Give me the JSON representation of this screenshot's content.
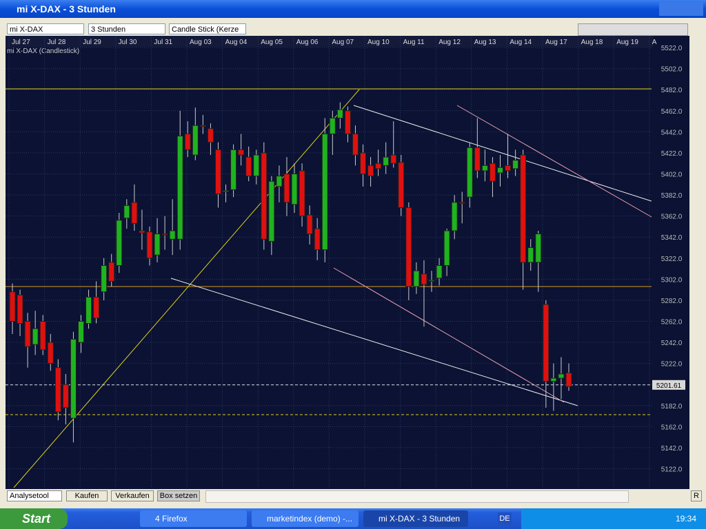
{
  "window": {
    "title": "mi X-DAX - 3 Stunden"
  },
  "toolbar": {
    "instrument": "mi X-DAX",
    "period": "3 Stunden",
    "chart_style": "Candle Stick (Kerze"
  },
  "chart_data": {
    "type": "candlestick",
    "title": "mi X-DAX (Candlestick)",
    "categories": [
      "Jul 27",
      "Jul 28",
      "Jul 29",
      "Jul 30",
      "Jul 31",
      "Aug 03",
      "Aug 04",
      "Aug 05",
      "Aug 06",
      "Aug 07",
      "Aug 10",
      "Aug 11",
      "Aug 12",
      "Aug 13",
      "Aug 14",
      "Aug 17",
      "Aug 18",
      "Aug 19",
      "A"
    ],
    "ylim": [
      5104,
      5524
    ],
    "yticks": [
      {
        "value": 5122,
        "label": "5122.0"
      },
      {
        "value": 5142,
        "label": "5142.0"
      },
      {
        "value": 5162,
        "label": "5162.0"
      },
      {
        "value": 5182,
        "label": "5182.0"
      },
      {
        "value": 5202,
        "label": "5202.0"
      },
      {
        "value": 5222,
        "label": "5222.0"
      },
      {
        "value": 5242,
        "label": "5242.0"
      },
      {
        "value": 5262,
        "label": "5262.0"
      },
      {
        "value": 5282,
        "label": "5282.0"
      },
      {
        "value": 5302,
        "label": "5302.0"
      },
      {
        "value": 5322,
        "label": "5322.0"
      },
      {
        "value": 5342,
        "label": "5342.0"
      },
      {
        "value": 5362,
        "label": "5362.0"
      },
      {
        "value": 5382,
        "label": "5382.0"
      },
      {
        "value": 5402,
        "label": "5402.0"
      },
      {
        "value": 5422,
        "label": "5422.0"
      },
      {
        "value": 5442,
        "label": "5442.0"
      },
      {
        "value": 5462,
        "label": "5462.0"
      },
      {
        "value": 5482,
        "label": "5482.0"
      },
      {
        "value": 5502,
        "label": "5502.0"
      },
      {
        "value": 5522,
        "label": "5522.0"
      }
    ],
    "last_price": {
      "value": 5201.61,
      "label": "5201.61"
    },
    "up_color": "#1fb31f",
    "down_color": "#e01010",
    "grid": true,
    "candles": [
      {
        "o": 5290,
        "h": 5298,
        "l": 5250,
        "c": 5262
      },
      {
        "o": 5287,
        "h": 5292,
        "l": 5248,
        "c": 5260
      },
      {
        "o": 5262,
        "h": 5270,
        "l": 5218,
        "c": 5238
      },
      {
        "o": 5240,
        "h": 5272,
        "l": 5230,
        "c": 5255
      },
      {
        "o": 5262,
        "h": 5268,
        "l": 5230,
        "c": 5235
      },
      {
        "o": 5242,
        "h": 5250,
        "l": 5215,
        "c": 5222
      },
      {
        "o": 5218,
        "h": 5226,
        "l": 5168,
        "c": 5176
      },
      {
        "o": 5202,
        "h": 5212,
        "l": 5164,
        "c": 5180
      },
      {
        "o": 5170,
        "h": 5252,
        "l": 5147,
        "c": 5245
      },
      {
        "o": 5242,
        "h": 5268,
        "l": 5232,
        "c": 5262
      },
      {
        "o": 5260,
        "h": 5292,
        "l": 5255,
        "c": 5285
      },
      {
        "o": 5285,
        "h": 5300,
        "l": 5260,
        "c": 5265
      },
      {
        "o": 5290,
        "h": 5322,
        "l": 5282,
        "c": 5315
      },
      {
        "o": 5318,
        "h": 5326,
        "l": 5295,
        "c": 5300
      },
      {
        "o": 5315,
        "h": 5365,
        "l": 5308,
        "c": 5358
      },
      {
        "o": 5360,
        "h": 5378,
        "l": 5350,
        "c": 5372
      },
      {
        "o": 5375,
        "h": 5392,
        "l": 5348,
        "c": 5355
      },
      {
        "o": 5348,
        "h": 5368,
        "l": 5330,
        "c": 5346
      },
      {
        "o": 5347,
        "h": 5352,
        "l": 5315,
        "c": 5322
      },
      {
        "o": 5325,
        "h": 5360,
        "l": 5318,
        "c": 5345
      },
      {
        "o": 5345,
        "h": 5362,
        "l": 5330,
        "c": 5344
      },
      {
        "o": 5340,
        "h": 5378,
        "l": 5325,
        "c": 5348
      },
      {
        "o": 5340,
        "h": 5462,
        "l": 5330,
        "c": 5438
      },
      {
        "o": 5440,
        "h": 5452,
        "l": 5418,
        "c": 5425
      },
      {
        "o": 5420,
        "h": 5465,
        "l": 5415,
        "c": 5448
      },
      {
        "o": 5448,
        "h": 5458,
        "l": 5440,
        "c": 5447
      },
      {
        "o": 5445,
        "h": 5450,
        "l": 5420,
        "c": 5432
      },
      {
        "o": 5425,
        "h": 5432,
        "l": 5370,
        "c": 5383
      },
      {
        "o": 5385,
        "h": 5392,
        "l": 5375,
        "c": 5386
      },
      {
        "o": 5387,
        "h": 5430,
        "l": 5380,
        "c": 5425
      },
      {
        "o": 5425,
        "h": 5440,
        "l": 5410,
        "c": 5420
      },
      {
        "o": 5418,
        "h": 5428,
        "l": 5395,
        "c": 5400
      },
      {
        "o": 5400,
        "h": 5425,
        "l": 5392,
        "c": 5420
      },
      {
        "o": 5422,
        "h": 5432,
        "l": 5330,
        "c": 5340
      },
      {
        "o": 5338,
        "h": 5400,
        "l": 5325,
        "c": 5395
      },
      {
        "o": 5390,
        "h": 5410,
        "l": 5375,
        "c": 5400
      },
      {
        "o": 5402,
        "h": 5418,
        "l": 5362,
        "c": 5375
      },
      {
        "o": 5373,
        "h": 5412,
        "l": 5365,
        "c": 5402
      },
      {
        "o": 5405,
        "h": 5412,
        "l": 5352,
        "c": 5362
      },
      {
        "o": 5363,
        "h": 5372,
        "l": 5335,
        "c": 5345
      },
      {
        "o": 5350,
        "h": 5360,
        "l": 5320,
        "c": 5330
      },
      {
        "o": 5330,
        "h": 5455,
        "l": 5318,
        "c": 5440
      },
      {
        "o": 5440,
        "h": 5462,
        "l": 5420,
        "c": 5455
      },
      {
        "o": 5455,
        "h": 5470,
        "l": 5445,
        "c": 5463
      },
      {
        "o": 5462,
        "h": 5466,
        "l": 5432,
        "c": 5440
      },
      {
        "o": 5440,
        "h": 5448,
        "l": 5410,
        "c": 5420
      },
      {
        "o": 5422,
        "h": 5430,
        "l": 5390,
        "c": 5402
      },
      {
        "o": 5410,
        "h": 5418,
        "l": 5390,
        "c": 5400
      },
      {
        "o": 5412,
        "h": 5425,
        "l": 5400,
        "c": 5407
      },
      {
        "o": 5410,
        "h": 5432,
        "l": 5402,
        "c": 5418
      },
      {
        "o": 5420,
        "h": 5452,
        "l": 5408,
        "c": 5412
      },
      {
        "o": 5413,
        "h": 5420,
        "l": 5362,
        "c": 5370
      },
      {
        "o": 5370,
        "h": 5375,
        "l": 5282,
        "c": 5295
      },
      {
        "o": 5295,
        "h": 5318,
        "l": 5288,
        "c": 5310
      },
      {
        "o": 5307,
        "h": 5320,
        "l": 5257,
        "c": 5297
      },
      {
        "o": 5300,
        "h": 5310,
        "l": 5290,
        "c": 5301
      },
      {
        "o": 5303,
        "h": 5322,
        "l": 5296,
        "c": 5315
      },
      {
        "o": 5315,
        "h": 5350,
        "l": 5305,
        "c": 5348
      },
      {
        "o": 5348,
        "h": 5382,
        "l": 5340,
        "c": 5375
      },
      {
        "o": 5375,
        "h": 5385,
        "l": 5355,
        "c": 5374
      },
      {
        "o": 5380,
        "h": 5432,
        "l": 5370,
        "c": 5427
      },
      {
        "o": 5427,
        "h": 5455,
        "l": 5398,
        "c": 5405
      },
      {
        "o": 5405,
        "h": 5425,
        "l": 5395,
        "c": 5410
      },
      {
        "o": 5412,
        "h": 5418,
        "l": 5380,
        "c": 5395
      },
      {
        "o": 5403,
        "h": 5420,
        "l": 5390,
        "c": 5408
      },
      {
        "o": 5410,
        "h": 5440,
        "l": 5398,
        "c": 5405
      },
      {
        "o": 5407,
        "h": 5425,
        "l": 5400,
        "c": 5415
      },
      {
        "o": 5420,
        "h": 5425,
        "l": 5292,
        "c": 5318
      },
      {
        "o": 5318,
        "h": 5340,
        "l": 5310,
        "c": 5332
      },
      {
        "o": 5318,
        "h": 5348,
        "l": 5290,
        "c": 5345
      },
      {
        "o": 5278,
        "h": 5282,
        "l": 5180,
        "c": 5205
      },
      {
        "o": 5205,
        "h": 5222,
        "l": 5177,
        "c": 5208
      },
      {
        "o": 5208,
        "h": 5228,
        "l": 5188,
        "c": 5212
      },
      {
        "o": 5213,
        "h": 5222,
        "l": 5196,
        "c": 5200
      }
    ]
  },
  "bottom_bar": {
    "tool": "Analysetool",
    "buy": "Kaufen",
    "sell": "Verkaufen",
    "box": "Box setzen",
    "reset": "R"
  },
  "taskbar": {
    "start": "Start",
    "items": [
      "4 Firefox",
      "marketindex (demo) -...",
      "mi X-DAX - 3 Stunden"
    ],
    "language": "DE",
    "clock": "19:34"
  }
}
